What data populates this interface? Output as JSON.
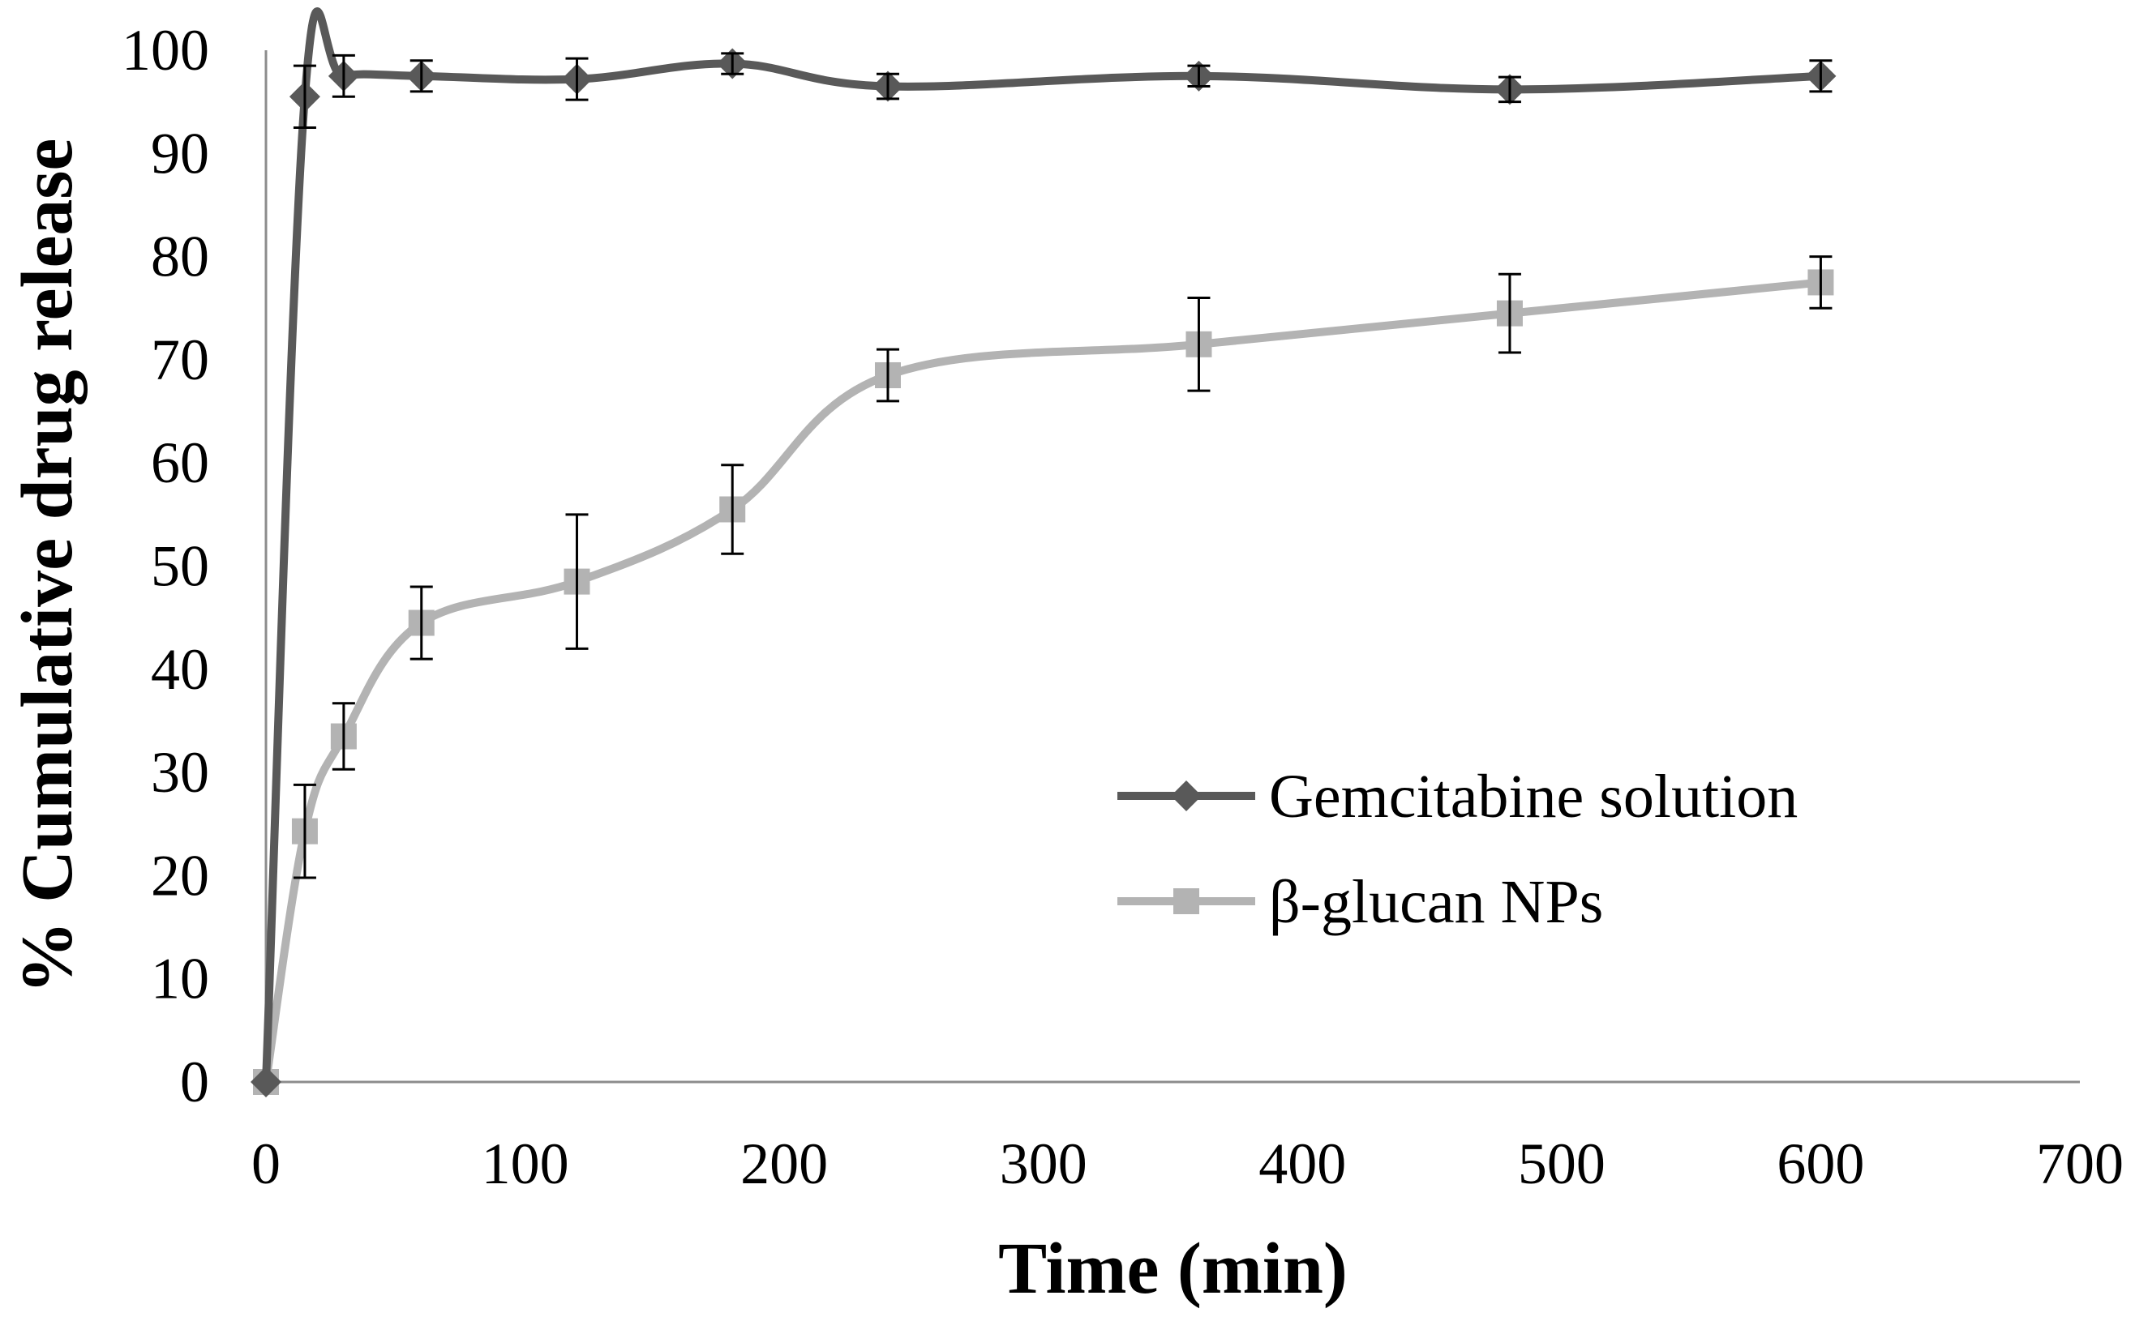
{
  "chart_data": {
    "type": "line",
    "title": "",
    "xlabel": "Time (min)",
    "ylabel": "% Cumulative drug release",
    "xlim": [
      0,
      700
    ],
    "ylim": [
      0,
      100
    ],
    "xticks": [
      0,
      100,
      200,
      300,
      400,
      500,
      600,
      700
    ],
    "yticks": [
      0,
      10,
      20,
      30,
      40,
      50,
      60,
      70,
      80,
      90,
      100
    ],
    "grid": false,
    "legend_position": "bottom-right",
    "series": [
      {
        "name": "Gemcitabine solution",
        "marker": "diamond",
        "color": "#595959",
        "x": [
          0,
          15,
          30,
          60,
          120,
          180,
          240,
          360,
          480,
          600
        ],
        "values": [
          0,
          95.5,
          97.5,
          97.5,
          97.2,
          98.7,
          96.5,
          97.5,
          96.2,
          97.5
        ],
        "errors": [
          0,
          3.0,
          2.0,
          1.5,
          2.0,
          1.0,
          1.2,
          1.0,
          1.2,
          1.5
        ]
      },
      {
        "name": "β-glucan NPs",
        "marker": "square",
        "color": "#b3b3b3",
        "x": [
          0,
          15,
          30,
          60,
          120,
          180,
          240,
          360,
          480,
          600
        ],
        "values": [
          0,
          24.3,
          33.5,
          44.5,
          48.5,
          55.5,
          68.5,
          71.5,
          74.5,
          77.5
        ],
        "errors": [
          0,
          4.5,
          3.2,
          3.5,
          6.5,
          4.3,
          2.5,
          4.5,
          3.8,
          2.5
        ]
      }
    ]
  }
}
